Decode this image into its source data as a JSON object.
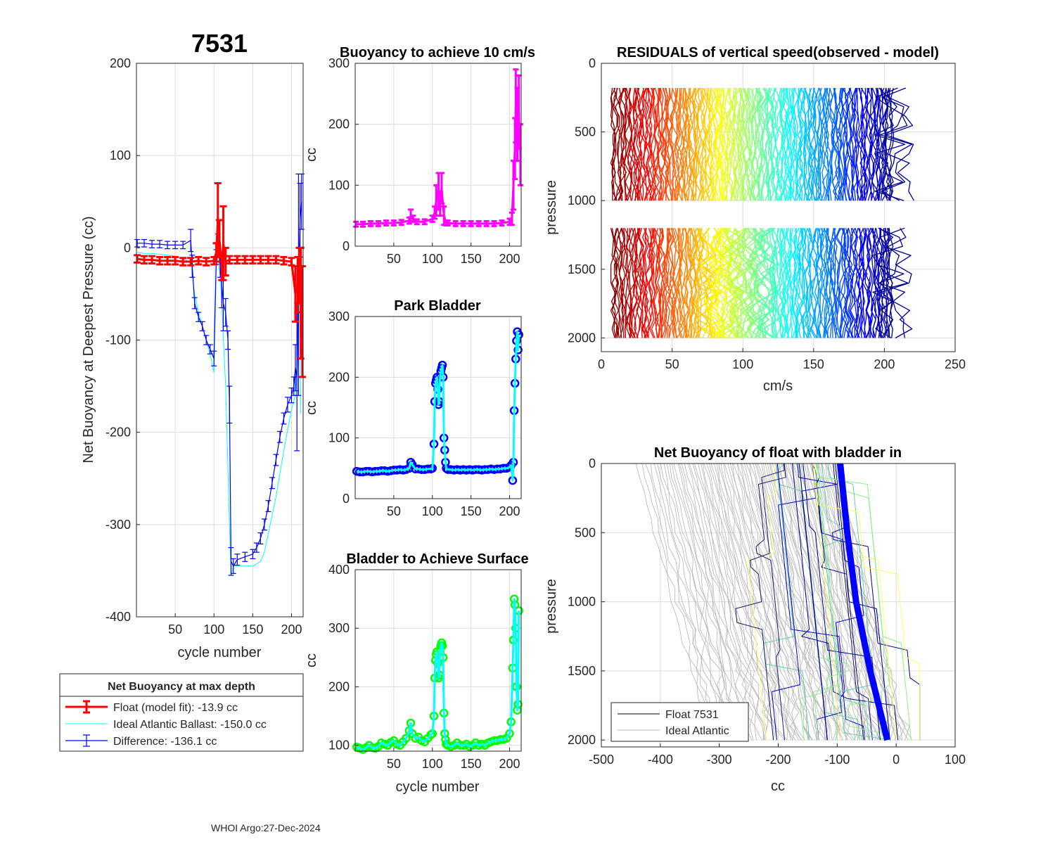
{
  "figure": {
    "float_id": "7531",
    "footer": "WHOI Argo:27-Dec-2024"
  },
  "chart_data": [
    {
      "id": "net_buoyancy",
      "type": "line",
      "title": "7531",
      "xlabel": "cycle number",
      "ylabel": "Net Buoyancy at Deepest Pressure (cc)",
      "xlim": [
        0,
        215
      ],
      "ylim": [
        -400,
        200
      ],
      "xticks": [
        50,
        100,
        150,
        200
      ],
      "yticks": [
        -400,
        -300,
        -200,
        -100,
        0,
        100,
        200
      ],
      "grid": true,
      "legend": {
        "title": "Net Buoyancy at max depth",
        "position": "below",
        "entries": [
          {
            "label": "Float (model fit): -13.9 cc",
            "color": "#ff0000"
          },
          {
            "label": "Ideal Atlantic Ballast: -150.0 cc",
            "color": "#00ffff"
          },
          {
            "label": "Difference: -136.1 cc",
            "color": "#0000ff"
          }
        ]
      },
      "series": [
        {
          "name": "Float (model fit)",
          "color": "#ff0000",
          "x": [
            1,
            10,
            20,
            30,
            40,
            50,
            60,
            70,
            80,
            90,
            100,
            103,
            105,
            107,
            110,
            112,
            115,
            120,
            130,
            140,
            150,
            160,
            170,
            180,
            190,
            200,
            205,
            208,
            210,
            212,
            214
          ],
          "y": [
            -12,
            -13,
            -13,
            -14,
            -14,
            -14,
            -15,
            -15,
            -14,
            -15,
            -14,
            -5,
            30,
            10,
            -20,
            5,
            -15,
            -13,
            -13,
            -13,
            -13,
            -13,
            -13,
            -13,
            -14,
            -15,
            -50,
            -40,
            -30,
            -60,
            -80
          ],
          "err": [
            4,
            4,
            4,
            4,
            4,
            4,
            4,
            4,
            4,
            4,
            4,
            10,
            40,
            20,
            15,
            40,
            15,
            4,
            4,
            4,
            4,
            4,
            4,
            4,
            4,
            4,
            30,
            30,
            30,
            60,
            60
          ]
        },
        {
          "name": "Ideal Atlantic Ballast",
          "color": "#00ffff",
          "x": [
            1,
            10,
            20,
            30,
            40,
            50,
            60,
            70,
            72,
            75,
            80,
            85,
            90,
            95,
            100,
            103,
            105,
            108,
            110,
            115,
            120,
            122,
            125,
            130,
            140,
            150,
            160,
            165,
            170,
            180,
            190,
            200,
            205,
            208,
            210,
            212
          ],
          "y": [
            -5,
            -6,
            -6,
            -7,
            -8,
            -9,
            -12,
            -15,
            -30,
            -50,
            -70,
            -85,
            -100,
            -115,
            -135,
            -20,
            -10,
            -30,
            -60,
            -150,
            -300,
            -355,
            -345,
            -345,
            -345,
            -345,
            -340,
            -330,
            -310,
            -270,
            -220,
            -175,
            -160,
            -120,
            -40,
            -180
          ]
        },
        {
          "name": "Difference",
          "color": "#0000ff",
          "x": [
            1,
            10,
            20,
            30,
            40,
            50,
            60,
            70,
            72,
            75,
            80,
            85,
            90,
            95,
            100,
            103,
            105,
            108,
            110,
            112,
            115,
            118,
            120,
            122,
            125,
            130,
            140,
            150,
            155,
            160,
            165,
            170,
            175,
            180,
            185,
            190,
            195,
            200,
            203,
            205,
            207,
            209,
            211,
            213
          ],
          "y": [
            5,
            5,
            4,
            4,
            3,
            3,
            3,
            8,
            -20,
            -60,
            -75,
            -85,
            -100,
            -110,
            -120,
            -10,
            5,
            -20,
            -40,
            -60,
            -70,
            -100,
            -170,
            -340,
            -345,
            -338,
            -335,
            -332,
            -325,
            -315,
            -300,
            -280,
            -255,
            -230,
            -205,
            -185,
            -170,
            -160,
            -150,
            -130,
            -140,
            -40,
            30,
            50
          ],
          "err": [
            4,
            4,
            4,
            4,
            4,
            4,
            4,
            12,
            12,
            6,
            5,
            5,
            5,
            5,
            8,
            8,
            10,
            12,
            25,
            30,
            15,
            10,
            20,
            15,
            8,
            6,
            5,
            5,
            5,
            6,
            6,
            6,
            6,
            6,
            6,
            6,
            8,
            8,
            10,
            25,
            80,
            120,
            40,
            30
          ]
        }
      ]
    },
    {
      "id": "buoyancy_10cms",
      "type": "line",
      "title": "Buoyancy to achieve 10 cm/s",
      "xlabel": "",
      "ylabel": "cc",
      "xlim": [
        0,
        215
      ],
      "ylim": [
        0,
        300
      ],
      "xticks": [
        50,
        100,
        150,
        200
      ],
      "yticks": [
        0,
        100,
        200,
        300
      ],
      "grid": true,
      "series": [
        {
          "name": "buoyancy",
          "color": "#ff00ff",
          "x": [
            1,
            10,
            20,
            30,
            40,
            50,
            60,
            70,
            72,
            75,
            80,
            90,
            100,
            103,
            105,
            108,
            110,
            112,
            115,
            118,
            120,
            130,
            140,
            150,
            160,
            170,
            180,
            190,
            200,
            203,
            205,
            207,
            208,
            210,
            212,
            214
          ],
          "y": [
            36,
            36,
            37,
            37,
            38,
            38,
            39,
            42,
            50,
            45,
            40,
            40,
            45,
            55,
            75,
            90,
            70,
            95,
            50,
            38,
            38,
            37,
            37,
            37,
            37,
            37,
            37,
            38,
            40,
            45,
            100,
            160,
            230,
            200,
            220,
            150
          ],
          "err": [
            4,
            4,
            4,
            4,
            4,
            4,
            4,
            5,
            10,
            5,
            4,
            4,
            5,
            10,
            25,
            30,
            20,
            25,
            15,
            4,
            4,
            4,
            4,
            4,
            4,
            4,
            4,
            4,
            5,
            10,
            40,
            50,
            60,
            60,
            60,
            50
          ]
        }
      ]
    },
    {
      "id": "park_bladder",
      "type": "line",
      "title": "Park Bladder",
      "xlabel": "",
      "ylabel": "cc",
      "xlim": [
        0,
        215
      ],
      "ylim": [
        0,
        300
      ],
      "xticks": [
        50,
        100,
        150,
        200
      ],
      "yticks": [
        0,
        100,
        200,
        300
      ],
      "grid": true,
      "series": [
        {
          "name": "park bladder",
          "color": "#00ffff",
          "marker_color": "#0000ff",
          "x": [
            2,
            6,
            10,
            14,
            18,
            22,
            26,
            30,
            34,
            38,
            42,
            46,
            50,
            54,
            58,
            62,
            66,
            70,
            72,
            74,
            78,
            82,
            86,
            90,
            94,
            98,
            100,
            102,
            103,
            104,
            105,
            106,
            107,
            108,
            109,
            110,
            111,
            112,
            113,
            114,
            115,
            116,
            117,
            118,
            120,
            124,
            128,
            132,
            136,
            140,
            144,
            148,
            152,
            156,
            160,
            164,
            168,
            172,
            176,
            180,
            184,
            188,
            192,
            196,
            200,
            202,
            204,
            205,
            206,
            207,
            208,
            209,
            210,
            211,
            212
          ],
          "y": [
            45,
            44,
            44,
            45,
            45,
            44,
            45,
            45,
            46,
            46,
            45,
            46,
            47,
            47,
            48,
            47,
            48,
            50,
            60,
            56,
            49,
            49,
            48,
            48,
            49,
            49,
            50,
            90,
            160,
            190,
            195,
            200,
            180,
            155,
            160,
            200,
            210,
            215,
            220,
            200,
            100,
            80,
            60,
            50,
            48,
            48,
            47,
            48,
            47,
            48,
            47,
            48,
            47,
            48,
            48,
            47,
            48,
            48,
            49,
            48,
            49,
            49,
            50,
            50,
            52,
            55,
            30,
            60,
            145,
            190,
            230,
            260,
            275,
            245,
            270
          ]
        }
      ]
    },
    {
      "id": "bladder_surface",
      "type": "line",
      "title": "Bladder to Achieve Surface",
      "xlabel": "cycle number",
      "ylabel": "cc",
      "xlim": [
        0,
        215
      ],
      "ylim": [
        90,
        400
      ],
      "xticks": [
        50,
        100,
        150,
        200
      ],
      "yticks": [
        100,
        200,
        300,
        400
      ],
      "grid": true,
      "series": [
        {
          "name": "surface bladder",
          "color": "#00ffff",
          "marker_color": "#00ff00",
          "x": [
            2,
            6,
            10,
            14,
            18,
            22,
            26,
            30,
            34,
            38,
            42,
            46,
            50,
            54,
            58,
            62,
            66,
            70,
            72,
            74,
            78,
            82,
            86,
            90,
            94,
            98,
            100,
            102,
            103,
            104,
            105,
            106,
            107,
            108,
            109,
            110,
            111,
            112,
            113,
            114,
            115,
            116,
            117,
            118,
            120,
            124,
            128,
            132,
            136,
            140,
            144,
            148,
            152,
            156,
            160,
            164,
            168,
            172,
            176,
            180,
            184,
            188,
            192,
            196,
            200,
            202,
            204,
            205,
            206,
            207,
            208,
            209,
            210,
            211,
            212
          ],
          "y": [
            97,
            95,
            93,
            96,
            100,
            96,
            95,
            98,
            104,
            102,
            100,
            105,
            108,
            102,
            100,
            106,
            112,
            125,
            138,
            120,
            112,
            114,
            108,
            106,
            112,
            118,
            120,
            150,
            215,
            245,
            255,
            260,
            240,
            215,
            220,
            260,
            270,
            275,
            270,
            250,
            155,
            120,
            110,
            102,
            100,
            98,
            100,
            104,
            100,
            100,
            102,
            98,
            100,
            104,
            100,
            102,
            100,
            104,
            106,
            108,
            108,
            110,
            110,
            112,
            120,
            140,
            232,
            280,
            350,
            340,
            300,
            200,
            160,
            170,
            330
          ]
        }
      ]
    },
    {
      "id": "residuals",
      "type": "line",
      "title": "RESIDUALS of vertical speed(observed - model)",
      "xlabel": "cm/s",
      "ylabel": "pressure",
      "xlim": [
        0,
        250
      ],
      "ylim": [
        0,
        2100
      ],
      "y_reversed": true,
      "xticks": [
        0,
        50,
        100,
        150,
        200,
        250
      ],
      "yticks": [
        0,
        500,
        1000,
        1500,
        2000
      ],
      "grid": true,
      "profile_groups": [
        {
          "p_range": [
            180,
            1000
          ],
          "cycles": 212,
          "x_start": 8,
          "x_spacing": 0.95
        },
        {
          "p_range": [
            1200,
            2000
          ],
          "cycles": 212,
          "x_start": 8,
          "x_spacing": 0.95
        }
      ],
      "colormap": "jet"
    },
    {
      "id": "net_buoyancy_bladder_in",
      "type": "line",
      "title": "Net Buoyancy of float with bladder in",
      "xlabel": "cc",
      "ylabel": "pressure",
      "xlim": [
        -500,
        100
      ],
      "ylim": [
        0,
        2050
      ],
      "y_reversed": true,
      "xticks": [
        -500,
        -400,
        -300,
        -200,
        -100,
        0,
        100
      ],
      "yticks": [
        0,
        500,
        1000,
        1500,
        2000
      ],
      "grid": true,
      "legend": {
        "position": "bottom-left",
        "entries": [
          {
            "label": "Float 7531",
            "color": "#000000"
          },
          {
            "label": "Ideal Atlantic",
            "color": "#b4b4b4"
          }
        ]
      },
      "ideal_profiles": {
        "count": 90,
        "x0_range": [
          -440,
          -100
        ],
        "slope_cc_per_dbar": 0.06
      },
      "float_profile": {
        "color": "#0000ff",
        "p": [
          0,
          500,
          1000,
          1500,
          2000
        ],
        "x": [
          -95,
          -83,
          -68,
          -44,
          -15
        ]
      }
    }
  ]
}
